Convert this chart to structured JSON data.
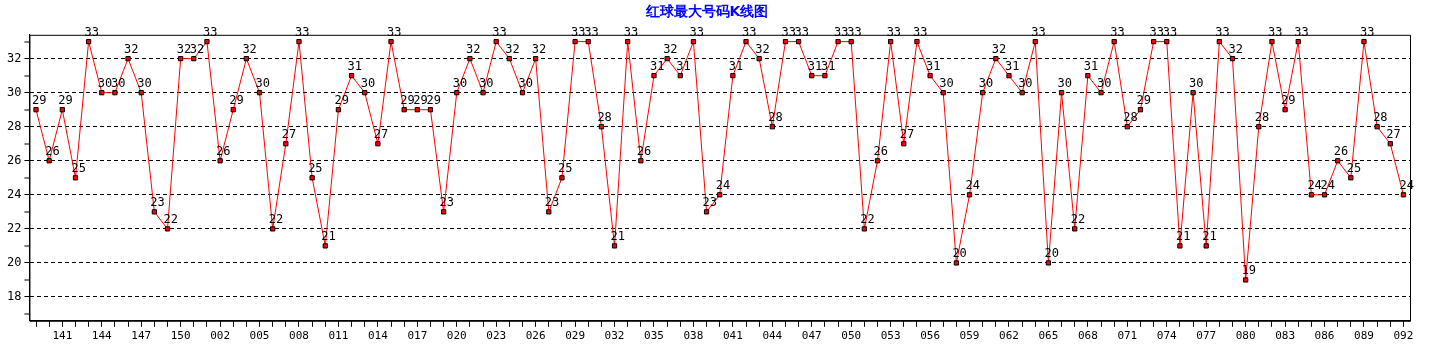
{
  "chart_data": {
    "type": "line",
    "title": "红球最大号码K线图",
    "categories": [
      null,
      null,
      "141",
      null,
      null,
      "144",
      null,
      null,
      "147",
      null,
      null,
      "150",
      null,
      null,
      "002",
      null,
      null,
      "005",
      null,
      null,
      "008",
      null,
      null,
      "011",
      null,
      null,
      "014",
      null,
      null,
      "017",
      null,
      null,
      "020",
      null,
      null,
      "023",
      null,
      null,
      "026",
      null,
      null,
      "029",
      null,
      null,
      "032",
      null,
      null,
      "035",
      null,
      null,
      "038",
      null,
      null,
      "041",
      null,
      null,
      "044",
      null,
      null,
      "047",
      null,
      null,
      "050",
      null,
      null,
      "053",
      null,
      null,
      "056",
      null,
      null,
      "059",
      null,
      null,
      "062",
      null,
      null,
      "065",
      null,
      null,
      "068",
      null,
      null,
      "071",
      null,
      null,
      "074",
      null,
      null,
      "077",
      null,
      null,
      "080",
      null,
      null,
      "083",
      null,
      null,
      "086",
      null,
      null,
      "089",
      null,
      null,
      "092"
    ],
    "series": [
      {
        "color": "#ff0000",
        "values": [
          29,
          26,
          29,
          25,
          33,
          30,
          30,
          32,
          30,
          23,
          22,
          32,
          32,
          33,
          26,
          29,
          32,
          30,
          22,
          27,
          33,
          25,
          21,
          29,
          31,
          30,
          27,
          33,
          29,
          29,
          29,
          23,
          30,
          32,
          30,
          33,
          32,
          30,
          32,
          23,
          25,
          33,
          33,
          28,
          21,
          33,
          26,
          31,
          32,
          31,
          33,
          23,
          24,
          31,
          33,
          32,
          28,
          33,
          33,
          31,
          31,
          33,
          33,
          22,
          26,
          33,
          27,
          33,
          31,
          30,
          20,
          24,
          30,
          32,
          31,
          30,
          33,
          20,
          30,
          22,
          31,
          30,
          33,
          28,
          29,
          33,
          33,
          21,
          30,
          21,
          33,
          32,
          19,
          28,
          33,
          29,
          33,
          24,
          24,
          26,
          25,
          33,
          28,
          27,
          24
        ]
      }
    ],
    "ylim": [
      16.6,
      33.4
    ],
    "yticks": [
      {
        "value": 17,
        "label": null
      },
      18,
      {
        "value": 19,
        "label": null
      },
      20,
      {
        "value": 21,
        "label": null
      },
      22,
      {
        "value": 23,
        "label": null
      },
      24,
      {
        "value": 25,
        "label": null
      },
      26,
      {
        "value": 27,
        "label": null
      },
      28,
      {
        "value": 29,
        "label": null
      },
      30,
      {
        "value": 31,
        "label": null
      },
      32,
      {
        "value": 33,
        "label": null
      }
    ],
    "grid": "y",
    "legend": false,
    "marker": "square",
    "line_style": "solid",
    "data_labels": true
  }
}
